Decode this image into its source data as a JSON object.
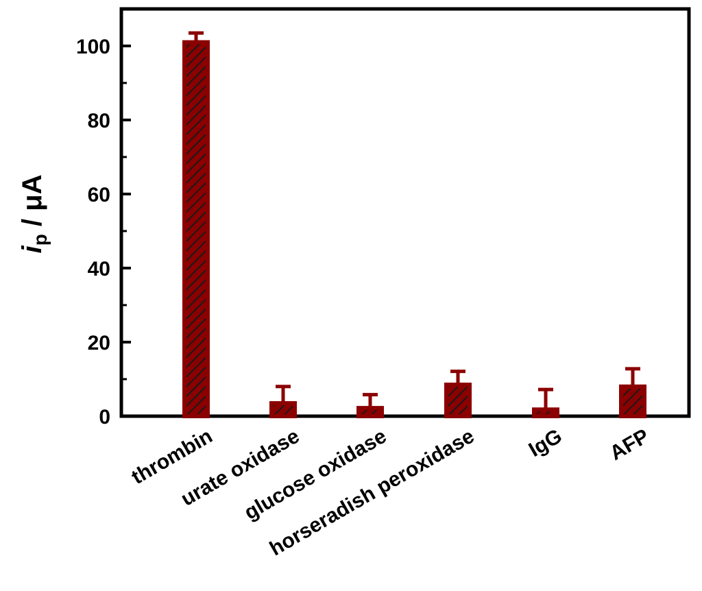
{
  "chart_data": {
    "type": "bar",
    "categories": [
      "thrombin",
      "urate oxidase",
      "glucose oxidase",
      "horseradish peroxidase",
      "IgG",
      "AFP"
    ],
    "values": [
      101,
      3.5,
      2.2,
      8.5,
      1.8,
      8.0
    ],
    "errors": [
      2.5,
      4.5,
      3.6,
      3.6,
      5.4,
      4.8
    ],
    "ylim": [
      0,
      110
    ],
    "yticks": [
      0,
      20,
      40,
      60,
      80,
      100
    ],
    "ylabel": {
      "italic_part": "i",
      "subscript": "p",
      "rest": " / μA"
    },
    "xlabel": "",
    "grid": false,
    "bar_color": "#8b0000",
    "hatch_color": "#1a1a1a"
  }
}
